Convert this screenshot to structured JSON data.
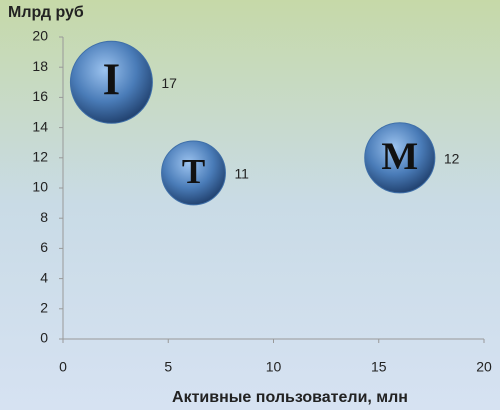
{
  "chart_data": {
    "type": "bubble",
    "title": "Млрд руб",
    "xlabel": "Активные пользователи, млн",
    "labels": [
      "I",
      "T",
      "M"
    ],
    "x": [
      2.3,
      6.2,
      16
    ],
    "y": [
      17,
      11,
      12
    ],
    "sizes": [
      16.8,
      10.2,
      12.3
    ],
    "color": "#3f6fa8",
    "xlim": [
      0,
      20
    ],
    "xticks": [
      0,
      5,
      10,
      15,
      20
    ],
    "ylim": [
      0,
      20
    ],
    "yticks": [
      0,
      2,
      4,
      6,
      8,
      10,
      12,
      14,
      16,
      18,
      20
    ],
    "grid": false
  }
}
